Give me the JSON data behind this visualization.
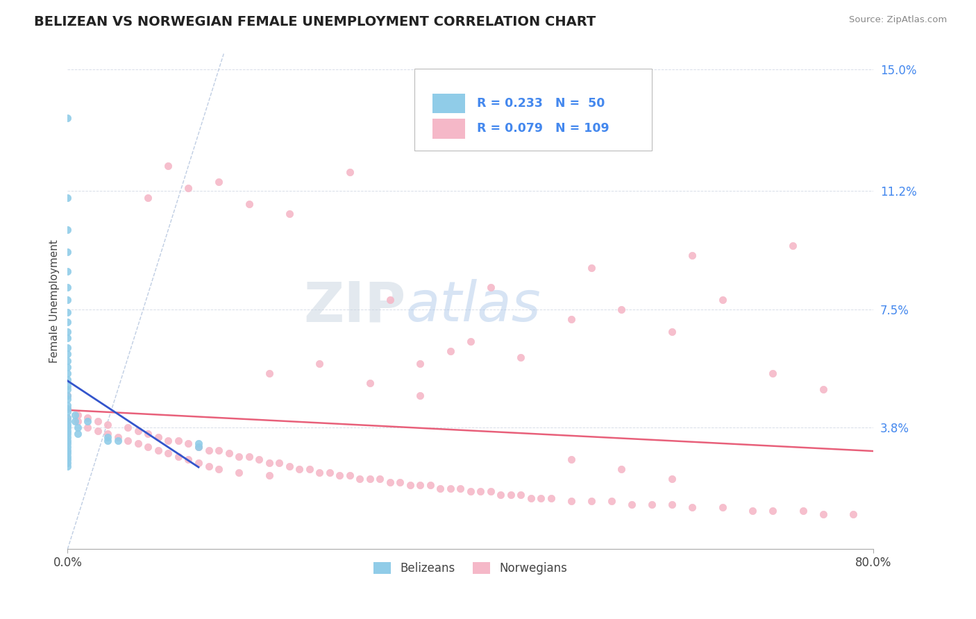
{
  "title": "BELIZEAN VS NORWEGIAN FEMALE UNEMPLOYMENT CORRELATION CHART",
  "source_text": "Source: ZipAtlas.com",
  "ylabel": "Female Unemployment",
  "watermark": "ZIPatlas",
  "xlim": [
    0.0,
    0.8
  ],
  "ylim": [
    0.0,
    0.155
  ],
  "yticks": [
    0.038,
    0.075,
    0.112,
    0.15
  ],
  "ytick_labels": [
    "3.8%",
    "7.5%",
    "11.2%",
    "15.0%"
  ],
  "xtick_labels": [
    "0.0%",
    "80.0%"
  ],
  "belizean_color": "#90cce8",
  "norwegian_color": "#f5b8c8",
  "belizean_R": 0.233,
  "belizean_N": 50,
  "norwegian_R": 0.079,
  "norwegian_N": 109,
  "trend_blue": "#3355cc",
  "trend_pink": "#e8607a",
  "diagonal_color": "#b8c8e0",
  "grid_color": "#d8dde8",
  "title_color": "#222222",
  "label_color": "#4488ee",
  "belizean_points_x": [
    0.0,
    0.0,
    0.0,
    0.0,
    0.0,
    0.0,
    0.0,
    0.0,
    0.0,
    0.0,
    0.0,
    0.0,
    0.0,
    0.0,
    0.0,
    0.0,
    0.0,
    0.0,
    0.0,
    0.0,
    0.0,
    0.0,
    0.0,
    0.0,
    0.0,
    0.0,
    0.0,
    0.0,
    0.0,
    0.0,
    0.0,
    0.0,
    0.0,
    0.0,
    0.0,
    0.0,
    0.0,
    0.0,
    0.0,
    0.0,
    0.007,
    0.007,
    0.01,
    0.01,
    0.02,
    0.04,
    0.04,
    0.05,
    0.13,
    0.13
  ],
  "belizean_points_y": [
    0.135,
    0.11,
    0.1,
    0.093,
    0.087,
    0.082,
    0.078,
    0.074,
    0.071,
    0.068,
    0.066,
    0.063,
    0.061,
    0.059,
    0.057,
    0.055,
    0.053,
    0.051,
    0.05,
    0.048,
    0.047,
    0.045,
    0.044,
    0.043,
    0.041,
    0.04,
    0.039,
    0.038,
    0.037,
    0.036,
    0.035,
    0.034,
    0.033,
    0.032,
    0.031,
    0.03,
    0.029,
    0.028,
    0.027,
    0.026,
    0.04,
    0.042,
    0.038,
    0.036,
    0.04,
    0.035,
    0.034,
    0.034,
    0.032,
    0.033
  ],
  "norwegian_points_x": [
    0.0,
    0.0,
    0.0,
    0.01,
    0.01,
    0.02,
    0.02,
    0.03,
    0.03,
    0.04,
    0.04,
    0.05,
    0.06,
    0.06,
    0.07,
    0.07,
    0.08,
    0.08,
    0.09,
    0.09,
    0.1,
    0.1,
    0.11,
    0.11,
    0.12,
    0.12,
    0.13,
    0.13,
    0.14,
    0.14,
    0.15,
    0.15,
    0.16,
    0.17,
    0.17,
    0.18,
    0.19,
    0.2,
    0.2,
    0.21,
    0.22,
    0.23,
    0.24,
    0.25,
    0.26,
    0.27,
    0.28,
    0.29,
    0.3,
    0.31,
    0.32,
    0.33,
    0.34,
    0.35,
    0.36,
    0.37,
    0.38,
    0.39,
    0.4,
    0.41,
    0.42,
    0.43,
    0.44,
    0.45,
    0.46,
    0.47,
    0.48,
    0.5,
    0.52,
    0.54,
    0.56,
    0.58,
    0.6,
    0.62,
    0.65,
    0.68,
    0.7,
    0.73,
    0.75,
    0.78,
    0.35,
    0.38,
    0.4,
    0.45,
    0.5,
    0.55,
    0.6,
    0.65,
    0.7,
    0.75,
    0.2,
    0.25,
    0.3,
    0.35,
    0.1,
    0.15,
    0.08,
    0.12,
    0.18,
    0.22,
    0.28,
    0.32,
    0.42,
    0.52,
    0.62,
    0.72,
    0.5,
    0.55,
    0.6
  ],
  "norwegian_points_y": [
    0.048,
    0.044,
    0.041,
    0.042,
    0.04,
    0.038,
    0.041,
    0.037,
    0.04,
    0.036,
    0.039,
    0.035,
    0.038,
    0.034,
    0.037,
    0.033,
    0.036,
    0.032,
    0.035,
    0.031,
    0.034,
    0.03,
    0.034,
    0.029,
    0.033,
    0.028,
    0.032,
    0.027,
    0.031,
    0.026,
    0.031,
    0.025,
    0.03,
    0.029,
    0.024,
    0.029,
    0.028,
    0.027,
    0.023,
    0.027,
    0.026,
    0.025,
    0.025,
    0.024,
    0.024,
    0.023,
    0.023,
    0.022,
    0.022,
    0.022,
    0.021,
    0.021,
    0.02,
    0.02,
    0.02,
    0.019,
    0.019,
    0.019,
    0.018,
    0.018,
    0.018,
    0.017,
    0.017,
    0.017,
    0.016,
    0.016,
    0.016,
    0.015,
    0.015,
    0.015,
    0.014,
    0.014,
    0.014,
    0.013,
    0.013,
    0.012,
    0.012,
    0.012,
    0.011,
    0.011,
    0.058,
    0.062,
    0.065,
    0.06,
    0.072,
    0.075,
    0.068,
    0.078,
    0.055,
    0.05,
    0.055,
    0.058,
    0.052,
    0.048,
    0.12,
    0.115,
    0.11,
    0.113,
    0.108,
    0.105,
    0.118,
    0.078,
    0.082,
    0.088,
    0.092,
    0.095,
    0.028,
    0.025,
    0.022
  ]
}
